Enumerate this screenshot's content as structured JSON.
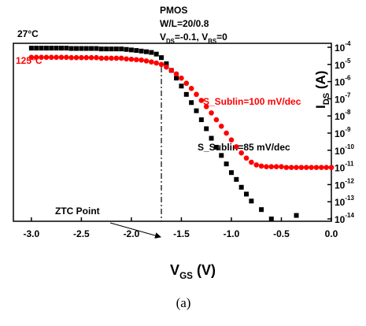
{
  "chart_data": {
    "type": "scatter",
    "y_scale": "log",
    "annotations": {
      "device": "PMOS",
      "size": "W/L=20/0.8",
      "bias": [
        {
          "text": "V"
        },
        {
          "text": "DS",
          "style": "sub"
        },
        {
          "text": "=-0.1, V"
        },
        {
          "text": "BS",
          "style": "sub"
        },
        {
          "text": "=0"
        }
      ],
      "slope_hot": "S_Sublin=100 mV/dec",
      "slope_room": "S_Sublin=85 mV/dec",
      "ztc": {
        "text": "ZTC Point",
        "x": -1.7
      }
    },
    "caption": "(a)",
    "x_label": [
      {
        "text": "V"
      },
      {
        "text": "GS",
        "style": "sub"
      },
      {
        "text": "  (V)"
      }
    ],
    "y_label": [
      {
        "text": "I"
      },
      {
        "text": "DS",
        "style": "sub"
      },
      {
        "text": "    (A)"
      }
    ],
    "xlim": [
      -3.18,
      0.0
    ],
    "ylim": [
      7.3e-15,
      0.00017
    ],
    "xticks": [
      {
        "value": -3.0,
        "label": "-3.0"
      },
      {
        "value": -2.5,
        "label": "-2.5"
      },
      {
        "value": -2.0,
        "label": "-2.0"
      },
      {
        "value": -1.5,
        "label": "-1.5"
      },
      {
        "value": -1.0,
        "label": "-1.0"
      },
      {
        "value": -0.5,
        "label": "-0.5"
      },
      {
        "value": 0.0,
        "label": "0.0"
      }
    ],
    "yticks": [
      {
        "value": 0.0001,
        "label": "10",
        "exponent": "-4"
      },
      {
        "value": 1e-05,
        "label": "10",
        "exponent": "-5"
      },
      {
        "value": 1e-06,
        "label": "10",
        "exponent": "-6"
      },
      {
        "value": 1e-07,
        "label": "10",
        "exponent": "-7"
      },
      {
        "value": 1e-08,
        "label": "10",
        "exponent": "-8"
      },
      {
        "value": 1e-09,
        "label": "10",
        "exponent": "-9"
      },
      {
        "value": 1e-10,
        "label": "10",
        "exponent": "-10"
      },
      {
        "value": 1e-11,
        "label": "10",
        "exponent": "-11"
      },
      {
        "value": 1e-12,
        "label": "10",
        "exponent": "-12"
      },
      {
        "value": 1e-13,
        "label": "10",
        "exponent": "-13"
      },
      {
        "value": 1e-14,
        "label": "10",
        "exponent": "-14"
      }
    ],
    "series": [
      {
        "name": "27°C",
        "color": "#000000",
        "marker": "square",
        "x": [
          -3.0,
          -2.95,
          -2.9,
          -2.85,
          -2.8,
          -2.75,
          -2.7,
          -2.65,
          -2.6,
          -2.55,
          -2.5,
          -2.45,
          -2.4,
          -2.35,
          -2.3,
          -2.25,
          -2.2,
          -2.15,
          -2.1,
          -2.05,
          -2.0,
          -1.95,
          -1.9,
          -1.85,
          -1.8,
          -1.75,
          -1.7,
          -1.65,
          -1.6,
          -1.55,
          -1.5,
          -1.45,
          -1.4,
          -1.35,
          -1.3,
          -1.25,
          -1.2,
          -1.15,
          -1.1,
          -1.05,
          -1.0,
          -0.95,
          -0.9,
          -0.85,
          -0.8,
          -0.7,
          -0.6,
          -0.35
        ],
        "values": [
          8.9e-05,
          8.9e-05,
          8.9e-05,
          8.9e-05,
          8.9e-05,
          8.9e-05,
          8.9e-05,
          8.9e-05,
          8.5e-05,
          8.5e-05,
          8.5e-05,
          8.5e-05,
          8.5e-05,
          8.5e-05,
          8e-05,
          8e-05,
          8e-05,
          8e-05,
          8e-05,
          7.5e-05,
          7e-05,
          6.5e-05,
          6e-05,
          5.5e-05,
          5e-05,
          4e-05,
          2.5e-05,
          1.1e-05,
          4.5e-06,
          1.6e-06,
          5.5e-07,
          1.8e-07,
          6e-08,
          2e-08,
          6e-09,
          1.8e-09,
          5e-10,
          1.5e-10,
          5e-11,
          1.6e-11,
          5e-12,
          2e-12,
          7e-13,
          2.8e-13,
          1.1e-13,
          3.5e-14,
          1e-14,
          1.6e-14
        ]
      },
      {
        "name": "125°C",
        "color": "#ff0000",
        "marker": "circle",
        "x": [
          -3.0,
          -2.95,
          -2.9,
          -2.85,
          -2.8,
          -2.75,
          -2.7,
          -2.65,
          -2.6,
          -2.55,
          -2.5,
          -2.45,
          -2.4,
          -2.35,
          -2.3,
          -2.25,
          -2.2,
          -2.15,
          -2.1,
          -2.05,
          -2.0,
          -1.95,
          -1.9,
          -1.85,
          -1.8,
          -1.75,
          -1.7,
          -1.65,
          -1.6,
          -1.55,
          -1.5,
          -1.45,
          -1.4,
          -1.35,
          -1.3,
          -1.25,
          -1.2,
          -1.15,
          -1.1,
          -1.05,
          -1.0,
          -0.95,
          -0.9,
          -0.85,
          -0.8,
          -0.75,
          -0.7,
          -0.65,
          -0.6,
          -0.55,
          -0.5,
          -0.45,
          -0.4,
          -0.35,
          -0.3,
          -0.25,
          -0.2,
          -0.15,
          -0.1,
          -0.05,
          0.0
        ],
        "values": [
          2.6e-05,
          2.6e-05,
          2.6e-05,
          2.6e-05,
          2.6e-05,
          2.6e-05,
          2.6e-05,
          2.6e-05,
          2.5e-05,
          2.5e-05,
          2.5e-05,
          2.5e-05,
          2.5e-05,
          2.5e-05,
          2.3e-05,
          2.3e-05,
          2.3e-05,
          2.3e-05,
          2.3e-05,
          2.1e-05,
          2e-05,
          1.9e-05,
          1.8e-05,
          1.6e-05,
          1.4e-05,
          1.2e-05,
          1e-05,
          7e-06,
          4.5e-06,
          2.8e-06,
          1.6e-06,
          8e-07,
          4e-07,
          1.8e-07,
          8e-08,
          3.5e-08,
          1.5e-08,
          6e-09,
          2.5e-09,
          1e-09,
          4e-10,
          1.6e-10,
          7e-11,
          3.5e-11,
          2e-11,
          1.4e-11,
          1.2e-11,
          1.1e-11,
          1.1e-11,
          1.1e-11,
          1.1e-11,
          1e-11,
          1e-11,
          1e-11,
          1e-11,
          1e-11,
          1e-11,
          1e-11,
          1e-11,
          1e-11,
          1e-11
        ]
      }
    ]
  }
}
